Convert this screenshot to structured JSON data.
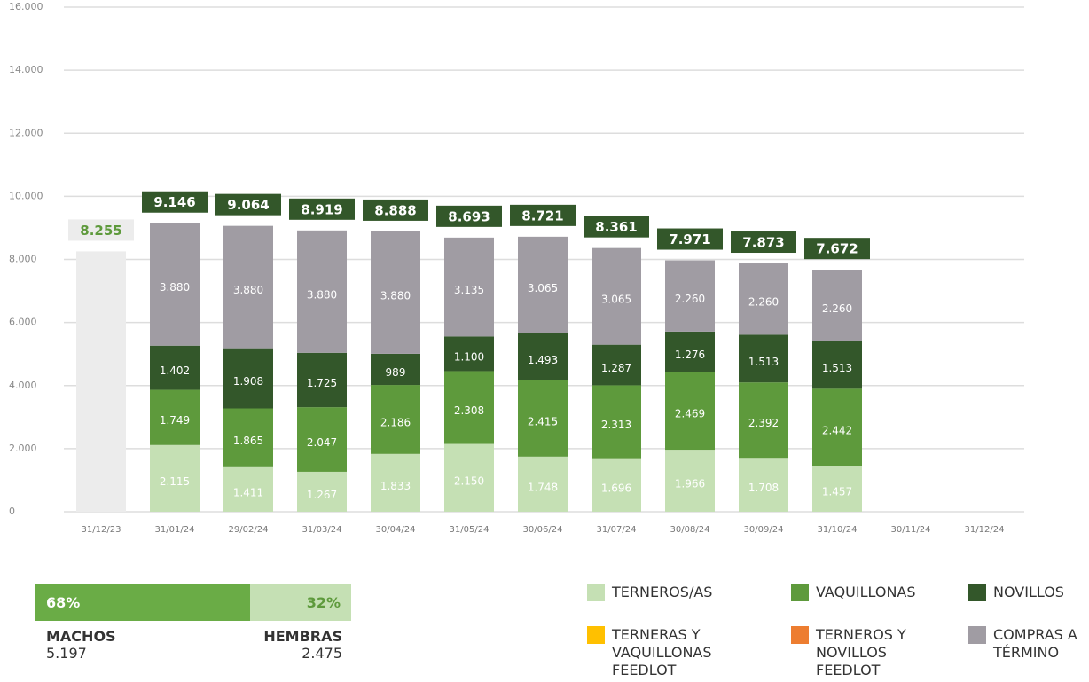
{
  "chart_data": {
    "type": "bar",
    "categories": [
      "31/12/23",
      "31/01/24",
      "29/02/24",
      "31/03/24",
      "30/04/24",
      "31/05/24",
      "30/06/24",
      "31/07/24",
      "30/08/24",
      "30/09/24",
      "31/10/24",
      "30/11/24",
      "31/12/24"
    ],
    "ylim": [
      0,
      16000
    ],
    "yticks": [
      0,
      {
        "value": 2000,
        "label": "2.000"
      },
      {
        "value": 4000,
        "label": "4.000"
      },
      {
        "value": 6000,
        "label": "6.000"
      },
      {
        "value": 8000,
        "label": "8.000"
      },
      {
        "value": 10000,
        "label": "10.000"
      },
      {
        "value": 12000,
        "label": "12.000"
      },
      {
        "value": 14000,
        "label": "14.000"
      },
      {
        "value": 16000,
        "label": "16.000"
      }
    ],
    "grid": true,
    "series": [
      {
        "name": "TERNEROS/AS",
        "color": "#c5e0b4",
        "values": [
          null,
          2115,
          1411,
          1267,
          1833,
          2150,
          1748,
          1696,
          1966,
          1708,
          1457,
          null,
          null
        ],
        "value_labels": [
          null,
          "2.115",
          "1.411",
          "1.267",
          "1.833",
          "2.150",
          "1.748",
          "1.696",
          "1.966",
          "1.708",
          "1.457",
          null,
          null
        ]
      },
      {
        "name": "VAQUILLONAS",
        "color": "#5e9a3c",
        "values": [
          null,
          1749,
          1865,
          2047,
          2186,
          2308,
          2415,
          2313,
          2469,
          2392,
          2442,
          null,
          null
        ],
        "value_labels": [
          null,
          "1.749",
          "1.865",
          "2.047",
          "2.186",
          "2.308",
          "2.415",
          "2.313",
          "2.469",
          "2.392",
          "2.442",
          null,
          null
        ]
      },
      {
        "name": "NOVILLOS",
        "color": "#33572a",
        "values": [
          null,
          1402,
          1908,
          1725,
          989,
          1100,
          1493,
          1287,
          1276,
          1513,
          1513,
          null,
          null
        ],
        "value_labels": [
          null,
          "1.402",
          "1.908",
          "1.725",
          "989",
          "1.100",
          "1.493",
          "1.287",
          "1.276",
          "1.513",
          "1.513",
          null,
          null
        ]
      },
      {
        "name": "TERNERAS Y VAQUILLONAS FEEDLOT",
        "color": "#ffc000",
        "values": [
          null,
          null,
          null,
          null,
          null,
          null,
          null,
          null,
          null,
          null,
          null,
          null,
          null
        ]
      },
      {
        "name": "TERNEROS Y NOVILLOS FEEDLOT",
        "color": "#ed7d31",
        "values": [
          null,
          null,
          null,
          null,
          null,
          null,
          null,
          null,
          null,
          null,
          null,
          null,
          null
        ]
      },
      {
        "name": "COMPRAS A TÉRMINO",
        "color": "#a09ca3",
        "values": [
          null,
          3880,
          3880,
          3880,
          3880,
          3135,
          3065,
          3065,
          2260,
          2260,
          2260,
          null,
          null
        ],
        "value_labels": [
          null,
          "3.880",
          "3.880",
          "3.880",
          "3.880",
          "3.135",
          "3.065",
          "3.065",
          "2.260",
          "2.260",
          "2.260",
          null,
          null
        ]
      }
    ],
    "totals": [
      8255,
      9146,
      9064,
      8919,
      8888,
      8693,
      8721,
      8361,
      7971,
      7873,
      7672,
      null,
      null
    ],
    "total_labels": [
      "8.255",
      "9.146",
      "9.064",
      "8.919",
      "8.888",
      "8.693",
      "8.721",
      "8.361",
      "7.971",
      "7.873",
      "7.672",
      null,
      null
    ],
    "total_color": "#33572a",
    "initial_color": "#ececec",
    "initial_text_color": "#5e9a3c"
  },
  "summary": {
    "machos": {
      "label": "MACHOS",
      "percent": 68,
      "percent_label": "68%",
      "count": "5.197",
      "color": "#6aac46"
    },
    "hembras": {
      "label": "HEMBRAS",
      "percent": 32,
      "percent_label": "32%",
      "count": "2.475",
      "color": "#c5e0b4"
    }
  }
}
